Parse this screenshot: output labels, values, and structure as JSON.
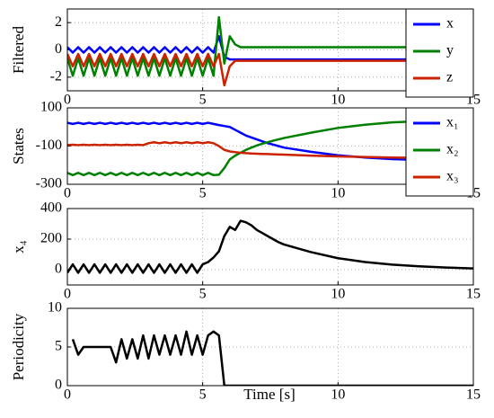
{
  "chart_data": [
    {
      "type": "line",
      "ylabel": "Filtered",
      "x": [
        0,
        0.2,
        0.4,
        0.6,
        0.8,
        1.0,
        1.2,
        1.4,
        1.6,
        1.8,
        2.0,
        2.2,
        2.4,
        2.6,
        2.8,
        3.0,
        3.2,
        3.4,
        3.6,
        3.8,
        4.0,
        4.2,
        4.4,
        4.6,
        4.8,
        5.0,
        5.2,
        5.4,
        5.6,
        5.8,
        6.0,
        6.2,
        6.4,
        6.6,
        6.8,
        7.0,
        7.2,
        7.4,
        7.6,
        7.8,
        8.0,
        9,
        10,
        11,
        12,
        13,
        14,
        15
      ],
      "xlim": [
        0,
        15
      ],
      "xticks": [
        0,
        5,
        10,
        15
      ],
      "ylim": [
        -3,
        3
      ],
      "yticks": [
        -2,
        0,
        2
      ],
      "grid": true,
      "legend": "upper right",
      "series": [
        {
          "name": "x",
          "color": "#0000ff",
          "values": [
            0.2,
            -0.2,
            0.2,
            -0.2,
            0.2,
            -0.2,
            0.2,
            -0.2,
            0.2,
            -0.2,
            0.2,
            -0.2,
            0.2,
            -0.2,
            0.2,
            -0.2,
            0.2,
            -0.2,
            0.2,
            -0.2,
            0.2,
            -0.2,
            0.2,
            -0.2,
            0.2,
            -0.2,
            0.2,
            -0.2,
            1.0,
            -0.5,
            -0.7,
            -0.7,
            -0.7,
            -0.7,
            -0.7,
            -0.7,
            -0.7,
            -0.7,
            -0.7,
            -0.7,
            -0.7,
            -0.7,
            -0.7,
            -0.7,
            -0.7,
            -0.7,
            -0.7,
            -0.7
          ]
        },
        {
          "name": "y",
          "color": "#008000",
          "values": [
            -0.6,
            -1.9,
            -0.6,
            -1.9,
            -0.6,
            -1.9,
            -0.6,
            -1.9,
            -0.6,
            -1.9,
            -0.6,
            -1.9,
            -0.6,
            -1.9,
            -0.6,
            -1.9,
            -0.6,
            -1.9,
            -0.6,
            -1.9,
            -0.6,
            -1.9,
            -0.6,
            -1.9,
            -0.6,
            -1.9,
            -0.6,
            -1.9,
            2.4,
            -1.0,
            1.0,
            0.4,
            0.2,
            0.2,
            0.2,
            0.2,
            0.2,
            0.2,
            0.2,
            0.2,
            0.2,
            0.2,
            0.2,
            0.2,
            0.2,
            0.2,
            0.2,
            0.2
          ]
        },
        {
          "name": "z",
          "color": "#cc2200",
          "values": [
            -0.3,
            -1.2,
            -0.3,
            -1.2,
            -0.3,
            -1.2,
            -0.3,
            -1.2,
            -0.3,
            -1.2,
            -0.3,
            -1.2,
            -0.3,
            -1.2,
            -0.3,
            -1.2,
            -0.3,
            -1.2,
            -0.3,
            -1.2,
            -0.3,
            -1.2,
            -0.3,
            -1.2,
            -0.3,
            -1.2,
            -0.3,
            -1.2,
            -0.3,
            -2.6,
            -1.2,
            -0.8,
            -0.8,
            -0.8,
            -0.8,
            -0.8,
            -0.8,
            -0.8,
            -0.8,
            -0.8,
            -0.8,
            -0.8,
            -0.8,
            -0.8,
            -0.8,
            -0.8,
            -0.8,
            -0.8
          ]
        }
      ]
    },
    {
      "type": "line",
      "ylabel": "States",
      "x": [
        0,
        0.2,
        0.4,
        0.6,
        0.8,
        1.0,
        1.2,
        1.4,
        1.6,
        1.8,
        2.0,
        2.2,
        2.4,
        2.6,
        2.8,
        3.0,
        3.2,
        3.4,
        3.6,
        3.8,
        4.0,
        4.2,
        4.4,
        4.6,
        4.8,
        5.0,
        5.2,
        5.4,
        5.6,
        5.8,
        6.0,
        6.2,
        6.4,
        6.6,
        6.8,
        7.0,
        7.2,
        7.4,
        7.6,
        7.8,
        8.0,
        9,
        10,
        11,
        12,
        13,
        14,
        15
      ],
      "xlim": [
        0,
        15
      ],
      "xticks": [
        0,
        5,
        10,
        15
      ],
      "ylim": [
        -300,
        100
      ],
      "yticks": [
        -300,
        -100,
        100
      ],
      "grid": true,
      "legend": "upper right",
      "series": [
        {
          "name": "x₁",
          "color": "#0000ff",
          "values": [
            22,
            16,
            22,
            16,
            22,
            16,
            22,
            16,
            22,
            16,
            22,
            16,
            22,
            16,
            22,
            16,
            22,
            16,
            22,
            16,
            22,
            16,
            22,
            16,
            22,
            16,
            22,
            16,
            10,
            5,
            0,
            -15,
            -30,
            -45,
            -55,
            -65,
            -75,
            -85,
            -92,
            -100,
            -108,
            -130,
            -148,
            -160,
            -168,
            -173,
            -177,
            -180
          ]
        },
        {
          "name": "x₂",
          "color": "#008000",
          "values": [
            -240,
            -252,
            -240,
            -252,
            -240,
            -252,
            -240,
            -252,
            -240,
            -252,
            -240,
            -252,
            -240,
            -252,
            -240,
            -252,
            -240,
            -252,
            -240,
            -252,
            -240,
            -252,
            -240,
            -252,
            -240,
            -252,
            -240,
            -252,
            -250,
            -215,
            -170,
            -150,
            -135,
            -120,
            -108,
            -97,
            -88,
            -80,
            -72,
            -65,
            -58,
            -30,
            -5,
            12,
            24,
            30,
            34,
            36
          ]
        },
        {
          "name": "x₃",
          "color": "#cc2200",
          "values": [
            -95,
            -93,
            -95,
            -93,
            -95,
            -93,
            -95,
            -93,
            -95,
            -93,
            -95,
            -93,
            -95,
            -93,
            -95,
            -85,
            -80,
            -85,
            -80,
            -85,
            -80,
            -85,
            -80,
            -85,
            -80,
            -85,
            -80,
            -85,
            -100,
            -120,
            -128,
            -132,
            -135,
            -137,
            -139,
            -140,
            -141,
            -142,
            -143,
            -144,
            -145,
            -150,
            -154,
            -157,
            -160,
            -162,
            -163,
            -164
          ]
        }
      ]
    },
    {
      "type": "line",
      "ylabel": "x₄",
      "x": [
        0,
        0.2,
        0.4,
        0.6,
        0.8,
        1.0,
        1.2,
        1.4,
        1.6,
        1.8,
        2.0,
        2.2,
        2.4,
        2.6,
        2.8,
        3.0,
        3.2,
        3.4,
        3.6,
        3.8,
        4.0,
        4.2,
        4.4,
        4.6,
        4.8,
        5.0,
        5.2,
        5.4,
        5.6,
        5.8,
        6.0,
        6.2,
        6.4,
        6.6,
        6.8,
        7.0,
        7.2,
        7.4,
        7.6,
        7.8,
        8.0,
        9,
        10,
        11,
        12,
        13,
        14,
        15
      ],
      "xlim": [
        0,
        15
      ],
      "xticks": [
        0,
        5,
        10,
        15
      ],
      "ylim": [
        -100,
        400
      ],
      "yticks": [
        0,
        200,
        400
      ],
      "grid": true,
      "series": [
        {
          "name": "x₄",
          "color": "#000000",
          "values": [
            -20,
            35,
            -20,
            35,
            -20,
            35,
            -20,
            35,
            -20,
            35,
            -20,
            35,
            -20,
            35,
            -20,
            35,
            -20,
            35,
            -20,
            35,
            -20,
            35,
            -20,
            35,
            -20,
            35,
            50,
            80,
            120,
            220,
            280,
            260,
            320,
            310,
            290,
            260,
            240,
            220,
            200,
            180,
            165,
            115,
            75,
            50,
            33,
            22,
            14,
            8
          ]
        }
      ]
    },
    {
      "type": "line",
      "ylabel": "Periodicity",
      "xlabel": "Time [s]",
      "x": [
        0,
        0.2,
        0.4,
        0.6,
        0.8,
        1.0,
        1.2,
        1.4,
        1.6,
        1.8,
        2.0,
        2.2,
        2.4,
        2.6,
        2.8,
        3.0,
        3.2,
        3.4,
        3.6,
        3.8,
        4.0,
        4.2,
        4.4,
        4.6,
        4.8,
        5.0,
        5.2,
        5.4,
        5.6,
        5.8,
        6.0,
        6.2,
        6.4,
        6.6,
        6.8,
        7.0,
        7.2,
        7.4,
        7.6,
        7.8,
        8.0,
        9,
        10,
        11,
        12,
        13,
        14,
        15
      ],
      "xlim": [
        0,
        15
      ],
      "xticks": [
        0,
        5,
        10,
        15
      ],
      "ylim": [
        0,
        10
      ],
      "yticks": [
        0,
        5,
        10
      ],
      "grid": true,
      "series": [
        {
          "name": "Periodicity",
          "color": "#000000",
          "values": [
            null,
            6,
            4,
            5,
            5,
            5,
            5,
            5,
            5,
            3,
            6,
            3.5,
            6,
            3.5,
            6.5,
            3.5,
            6.5,
            4,
            6.5,
            4,
            6.5,
            4,
            7,
            4,
            6.5,
            4,
            6.5,
            7,
            6.5,
            0,
            0,
            0,
            0,
            0,
            0,
            0,
            0,
            0,
            0,
            0,
            0,
            0,
            0,
            0,
            0,
            0,
            0,
            0
          ]
        }
      ]
    }
  ]
}
